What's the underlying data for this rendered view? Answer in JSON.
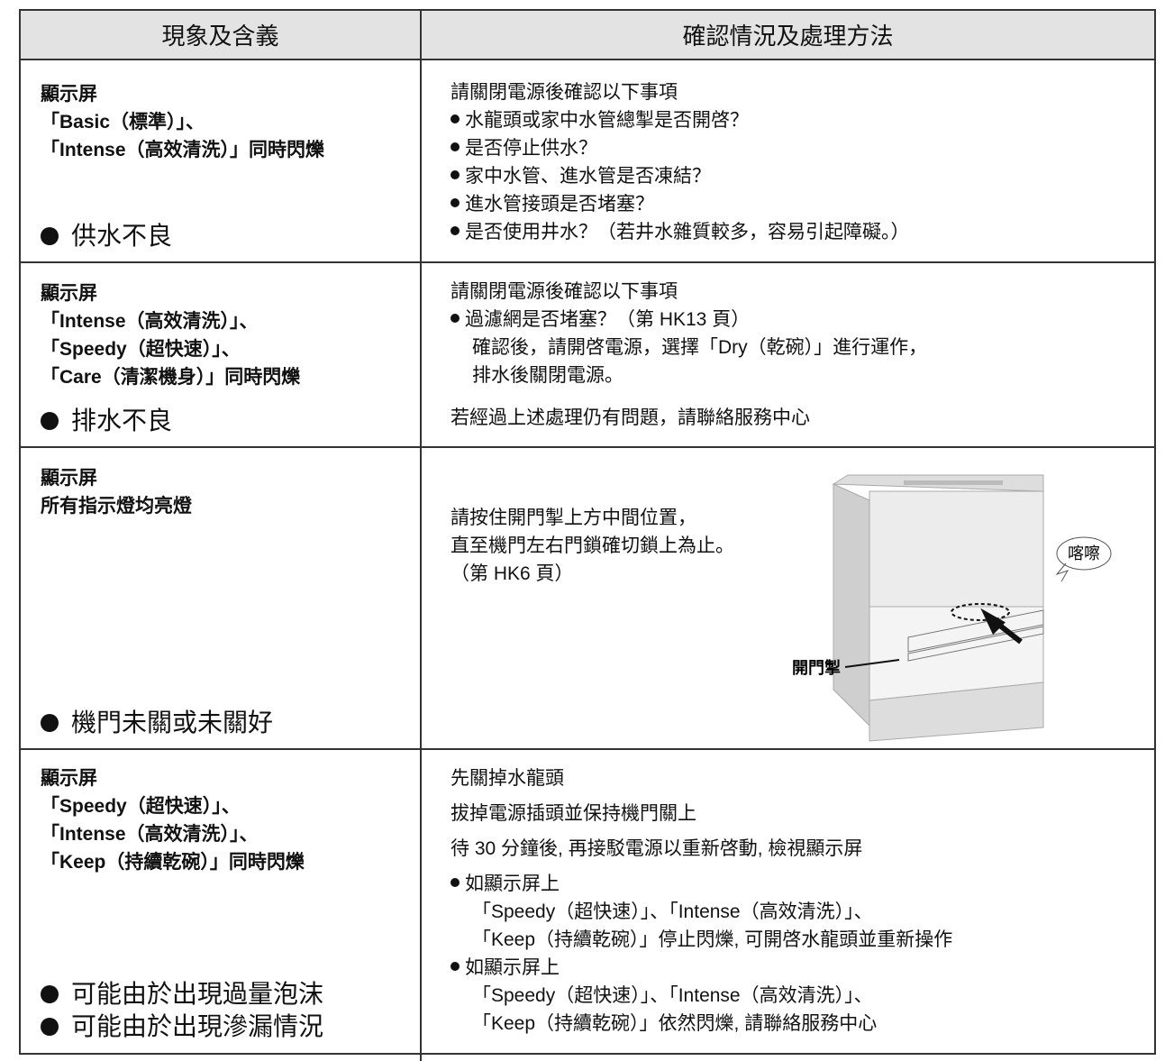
{
  "header": {
    "col1": "現象及含義",
    "col2": "確認情況及處理方法"
  },
  "rows": [
    {
      "display_lines": [
        "顯示屏",
        "「Basic（標準）」、",
        "「Intense（高效清洗）」同時閃爍"
      ],
      "symptoms": [
        "供水不良"
      ],
      "actions": [
        "請關閉電源後確認以下事項",
        "水龍頭或家中水管總掣是否開啓？",
        "是否停止供水？",
        "家中水管、進水管是否凍結？",
        "進水管接頭是否堵塞？",
        "是否使用井水？（若井水雜質較多，容易引起障礙。）"
      ]
    },
    {
      "display_lines": [
        "顯示屏",
        "「Intense（高效清洗）」、",
        "「Speedy（超快速）」、",
        "「Care（清潔機身）」同時閃爍"
      ],
      "symptoms": [
        "排水不良"
      ],
      "actions": [
        "請關閉電源後確認以下事項",
        "過濾網是否堵塞？（第 HK13 頁）",
        "確認後，請開啓電源，選擇「Dry（乾碗）」進行運作，",
        "排水後關閉電源。",
        "若經過上述處理仍有問題，請聯絡服務中心"
      ]
    },
    {
      "display_lines": [
        "顯示屏",
        "所有指示燈均亮燈"
      ],
      "symptoms": [
        "機門未關或未關好"
      ],
      "actions": [
        "請按住開門掣上方中間位置，",
        "直至機門左右門鎖確切鎖上為止。",
        "（第 HK6 頁）"
      ],
      "figure": {
        "sound": "喀嚓",
        "handle": "開門掣"
      }
    },
    {
      "display_lines": [
        "顯示屏",
        "「Speedy（超快速）」、",
        "「Intense（高效清洗）」、",
        "「Keep（持續乾碗）」同時閃爍"
      ],
      "symptoms": [
        "可能由於出現過量泡沫",
        "可能由於出現滲漏情況"
      ],
      "actions": [
        "先關掉水龍頭",
        "拔掉電源插頭並保持機門關上",
        "待 30 分鐘後, 再接駁電源以重新啓動, 檢視顯示屏",
        "如顯示屏上",
        "「Speedy（超快速）」、「Intense（高效清洗）」、",
        "「Keep（持續乾碗）」停止閃爍, 可開啓水龍頭並重新操作",
        "如顯示屏上",
        "「Speedy（超快速）」、「Intense（高效清洗）」、",
        "「Keep（持續乾碗）」依然閃爍, 請聯絡服務中心"
      ]
    }
  ]
}
